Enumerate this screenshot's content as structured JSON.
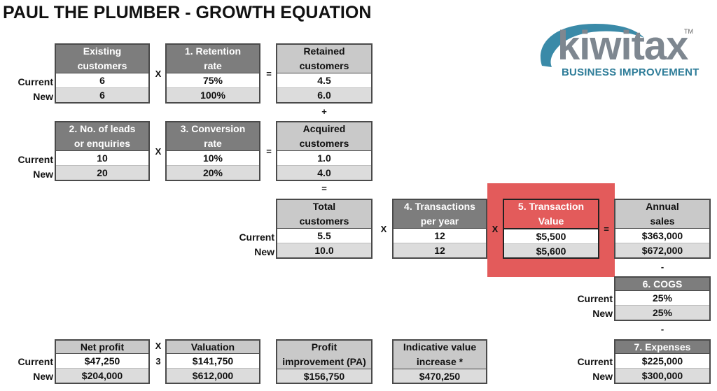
{
  "title": "PAUL THE PLUMBER - GROWTH EQUATION",
  "logo": {
    "word": "kiwitax",
    "tm": "TM",
    "subtitle": "BUSINESS IMPROVEMENT"
  },
  "labels": {
    "current": "Current",
    "new": "New"
  },
  "operators": {
    "times": "X",
    "equals": "=",
    "plus": "+",
    "minus": "-",
    "three": "3"
  },
  "colors": {
    "highlight": "#e35b5b",
    "dark_header": "#7d7d7d",
    "light_header": "#c9c9c9",
    "logo_blue": "#2f7d99"
  },
  "boxes": {
    "existing_customers": {
      "head1": "Existing",
      "head2": "customers",
      "current": "6",
      "new": "6"
    },
    "retention_rate": {
      "head1": "1. Retention",
      "head2": "rate",
      "current": "75%",
      "new": "100%"
    },
    "retained_customers": {
      "head1": "Retained",
      "head2": "customers",
      "current": "4.5",
      "new": "6.0"
    },
    "leads": {
      "head1": "2. No. of leads",
      "head2": "or enquiries",
      "current": "10",
      "new": "20"
    },
    "conversion_rate": {
      "head1": "3. Conversion",
      "head2": "rate",
      "current": "10%",
      "new": "20%"
    },
    "acquired_customers": {
      "head1": "Acquired",
      "head2": "customers",
      "current": "1.0",
      "new": "4.0"
    },
    "total_customers": {
      "head1": "Total",
      "head2": "customers",
      "current": "5.5",
      "new": "10.0"
    },
    "transactions_per_year": {
      "head1": "4. Transactions",
      "head2": "per year",
      "current": "12",
      "new": "12"
    },
    "transaction_value": {
      "head1": "5. Transaction",
      "head2": "Value",
      "current": "$5,500",
      "new": "$5,600"
    },
    "annual_sales": {
      "head1": "Annual",
      "head2": "sales",
      "current": "$363,000",
      "new": "$672,000"
    },
    "cogs": {
      "head1": "6. COGS",
      "current": "25%",
      "new": "25%"
    },
    "expenses": {
      "head1": "7. Expenses",
      "current": "$225,000",
      "new": "$300,000"
    },
    "net_profit": {
      "head1": "Net profit",
      "current": "$47,250",
      "new": "$204,000"
    },
    "valuation": {
      "head1": "Valuation",
      "current": "$141,750",
      "new": "$612,000"
    },
    "profit_improvement": {
      "head1": "Profit",
      "head2": "improvement (PA)",
      "new": "$156,750"
    },
    "indicative_value": {
      "head1": "Indicative value",
      "head2": "increase *",
      "new": "$470,250"
    }
  }
}
